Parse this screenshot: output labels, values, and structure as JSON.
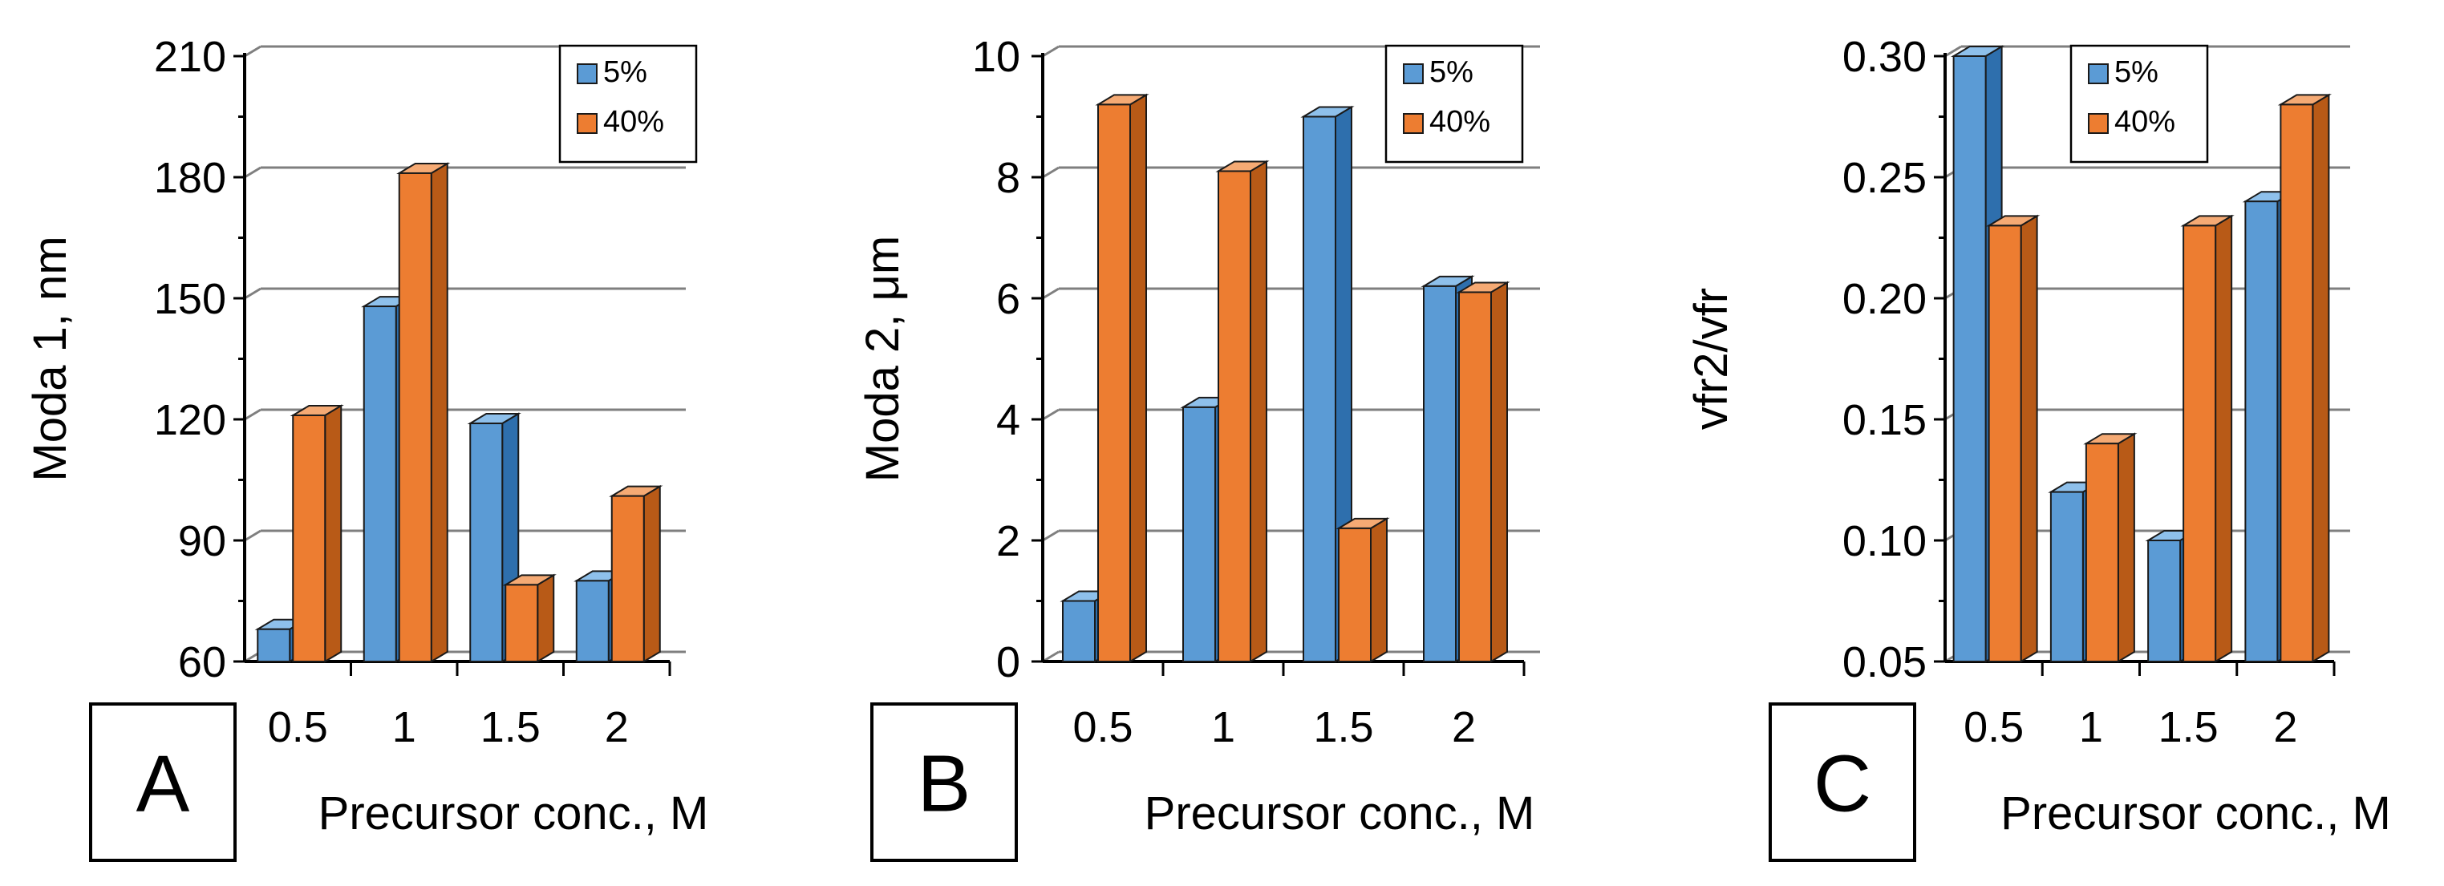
{
  "colors": {
    "series_5": "#5b9bd5",
    "series_5_side": "#2e6fad",
    "series_5_top": "#8ec0eb",
    "series_40": "#ed7d31",
    "series_40_side": "#b85a17",
    "series_40_top": "#f5aa74",
    "outline": "#1a1a1a",
    "gridline": "#7f7f7f"
  },
  "chart_data": [
    {
      "type": "bar",
      "panel_label": "A",
      "categories": [
        "0.5",
        "1",
        "1.5",
        "2"
      ],
      "series": [
        {
          "name": "5%",
          "values": [
            68,
            148,
            119,
            80
          ]
        },
        {
          "name": "40%",
          "values": [
            121,
            181,
            79,
            101
          ]
        }
      ],
      "xlabel": "Precursor conc., M",
      "ylabel": "Moda 1, nm",
      "ylim": [
        60,
        210
      ],
      "yticks": [
        "60",
        "90",
        "120",
        "150",
        "180",
        "210"
      ],
      "grid": true,
      "legend_position": "top-right"
    },
    {
      "type": "bar",
      "panel_label": "B",
      "categories": [
        "0.5",
        "1",
        "1.5",
        "2"
      ],
      "series": [
        {
          "name": "5%",
          "values": [
            1.0,
            4.2,
            9.0,
            6.2
          ]
        },
        {
          "name": "40%",
          "values": [
            9.2,
            8.1,
            2.2,
            6.1
          ]
        }
      ],
      "xlabel": "Precursor conc., M",
      "ylabel": "Moda 2, μm",
      "ylim": [
        0,
        10
      ],
      "yticks": [
        "0",
        "2",
        "4",
        "6",
        "8",
        "10"
      ],
      "grid": true,
      "legend_position": "top-right"
    },
    {
      "type": "bar",
      "panel_label": "C",
      "categories": [
        "0.5",
        "1",
        "1.5",
        "2"
      ],
      "series": [
        {
          "name": "5%",
          "values": [
            0.3,
            0.12,
            0.1,
            0.24
          ]
        },
        {
          "name": "40%",
          "values": [
            0.23,
            0.14,
            0.23,
            0.28
          ]
        }
      ],
      "xlabel": "Precursor  conc., M",
      "ylabel": "vfr2/vfr",
      "ylim": [
        0.05,
        0.3
      ],
      "yticks": [
        "0.05",
        "0.10",
        "0.15",
        "0.20",
        "0.25",
        "0.30"
      ],
      "grid": true,
      "legend_position": "top-right"
    }
  ]
}
